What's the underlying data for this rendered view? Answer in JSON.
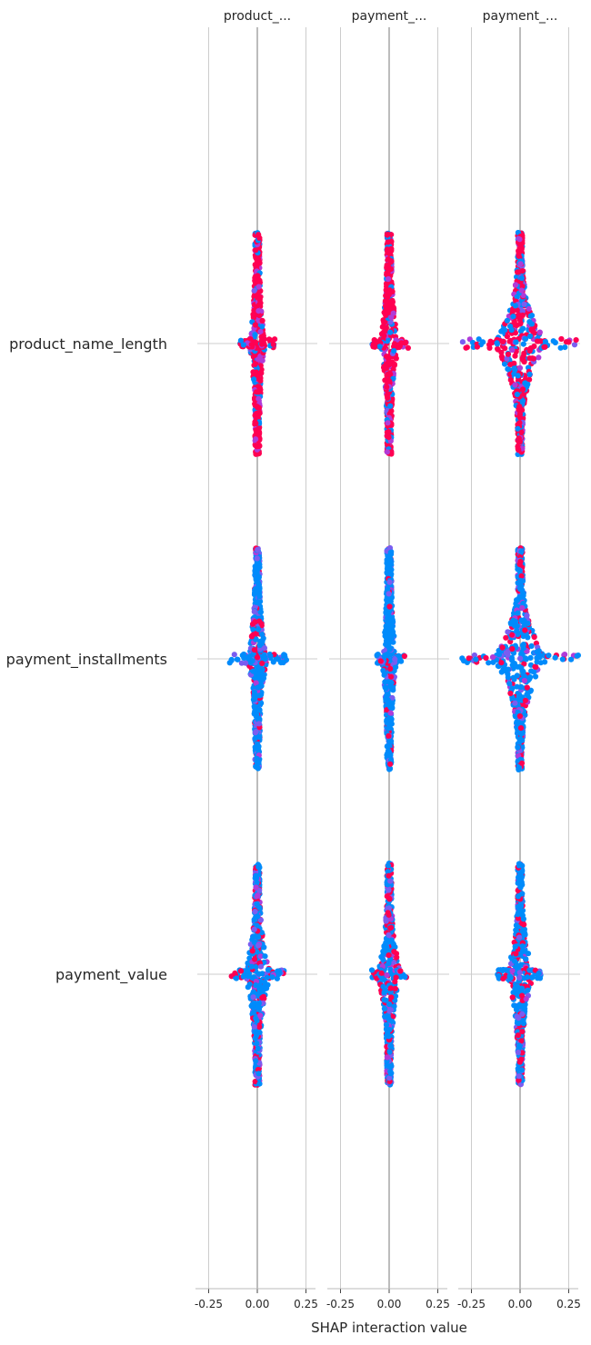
{
  "chart_data": {
    "type": "scatter",
    "subtype": "shap-interaction-beeswarm",
    "xlabel": "SHAP interaction value",
    "xlim": [
      -0.3,
      0.3
    ],
    "xticks": [
      -0.25,
      0.0,
      0.25
    ],
    "xtick_labels": [
      "-0.25",
      "0.00",
      "0.25"
    ],
    "grid": true,
    "columns": [
      {
        "title": "product_..."
      },
      {
        "title": "payment_..."
      },
      {
        "title": "payment_..."
      }
    ],
    "rows": [
      {
        "label": "product_name_length"
      },
      {
        "label": "payment_installments"
      },
      {
        "label": "payment_value"
      }
    ],
    "color_low": "#008bfb",
    "color_high": "#ff0052",
    "cells": [
      {
        "row": 0,
        "col": 0,
        "x_spread": 0.03,
        "x_extreme": 0.09,
        "height": 1.0,
        "red_frac": 0.85
      },
      {
        "row": 0,
        "col": 1,
        "x_spread": 0.04,
        "x_extreme": 0.1,
        "height": 1.0,
        "red_frac": 0.8
      },
      {
        "row": 0,
        "col": 2,
        "x_spread": 0.13,
        "x_extreme": 0.3,
        "height": 1.0,
        "red_frac": 0.65
      },
      {
        "row": 1,
        "col": 0,
        "x_spread": 0.04,
        "x_extreme": 0.15,
        "height": 1.0,
        "red_frac": 0.15
      },
      {
        "row": 1,
        "col": 1,
        "x_spread": 0.03,
        "x_extreme": 0.08,
        "height": 1.0,
        "red_frac": 0.12
      },
      {
        "row": 1,
        "col": 2,
        "x_spread": 0.13,
        "x_extreme": 0.3,
        "height": 1.0,
        "red_frac": 0.25
      },
      {
        "row": 2,
        "col": 0,
        "x_spread": 0.06,
        "x_extreme": 0.14,
        "height": 1.0,
        "red_frac": 0.3
      },
      {
        "row": 2,
        "col": 1,
        "x_spread": 0.05,
        "x_extreme": 0.09,
        "height": 1.0,
        "red_frac": 0.3
      },
      {
        "row": 2,
        "col": 2,
        "x_spread": 0.06,
        "x_extreme": 0.12,
        "height": 1.0,
        "red_frac": 0.3
      }
    ]
  }
}
